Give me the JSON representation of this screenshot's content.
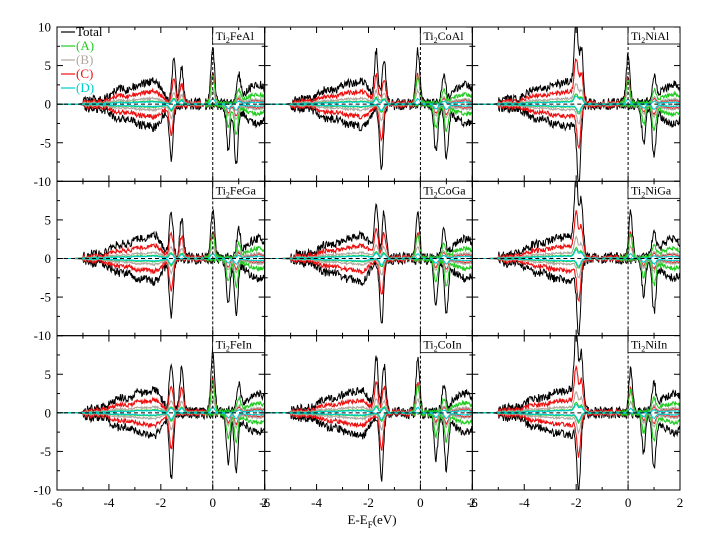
{
  "figure": {
    "xlabel": "E-E",
    "xlabel_sub": "F",
    "xlabel_unit": "(eV)",
    "legend": [
      {
        "label": "Total",
        "color": "#000000"
      },
      {
        "label": "(A)",
        "color": "#22cc22"
      },
      {
        "label": "(B)",
        "color": "#b0a8a0"
      },
      {
        "label": "(C)",
        "color": "#ee1111"
      },
      {
        "label": "(D)",
        "color": "#00cccc"
      }
    ],
    "x_ticks": [
      "-6",
      "-4",
      "-2",
      "0",
      "2"
    ],
    "x_tick_values": [
      -6,
      -4,
      -2,
      0,
      2
    ],
    "y_ticks": [
      "10",
      "5",
      "0",
      "-5",
      "-10"
    ],
    "y_tick_values": [
      10,
      5,
      0,
      -5,
      -10
    ]
  },
  "panels": [
    {
      "id": "Ti2FeAl",
      "base": "Ti",
      "sub": "2",
      "rest": "FeAl"
    },
    {
      "id": "Ti2CoAl",
      "base": "Ti",
      "sub": "2",
      "rest": "CoAl"
    },
    {
      "id": "Ti2NiAl",
      "base": "Ti",
      "sub": "2",
      "rest": "NiAl"
    },
    {
      "id": "Ti2FeGa",
      "base": "Ti",
      "sub": "2",
      "rest": "FeGa"
    },
    {
      "id": "Ti2CoGa",
      "base": "Ti",
      "sub": "2",
      "rest": "CoGa"
    },
    {
      "id": "Ti2NiGa",
      "base": "Ti",
      "sub": "2",
      "rest": "NiGa"
    },
    {
      "id": "Ti2FeIn",
      "base": "Ti",
      "sub": "2",
      "rest": "FeIn"
    },
    {
      "id": "Ti2CoIn",
      "base": "Ti",
      "sub": "2",
      "rest": "CoIn"
    },
    {
      "id": "Ti2NiIn",
      "base": "Ti",
      "sub": "2",
      "rest": "NiIn"
    }
  ],
  "chart_data": {
    "type": "line",
    "layout": "3x3 grid of panels with shared axes",
    "x_range": [
      -6,
      2
    ],
    "y_range": [
      -10,
      10
    ],
    "fermi_line_x": 0,
    "series_names": [
      "Total",
      "(A)",
      "(B)",
      "(C)",
      "(D)"
    ],
    "note": "Spin-resolved density of states; positive y = spin up, negative y = spin down",
    "peaks": {
      "Ti2FeAl": {
        "up": [
          [
            -1.5,
            6.2
          ],
          [
            -1.2,
            5.0
          ],
          [
            0,
            7.8
          ],
          [
            1.0,
            3.5
          ]
        ],
        "down": [
          [
            -1.6,
            -7.5
          ],
          [
            0.6,
            -6.5
          ],
          [
            0.9,
            -8.2
          ]
        ]
      },
      "Ti2CoAl": {
        "up": [
          [
            -1.7,
            7.0
          ],
          [
            -1.4,
            6.0
          ],
          [
            -0.1,
            7.5
          ],
          [
            0.9,
            3.5
          ]
        ],
        "down": [
          [
            -1.5,
            -9.0
          ],
          [
            0.6,
            -6.8
          ],
          [
            1.0,
            -7.0
          ]
        ]
      },
      "Ti2NiAl": {
        "up": [
          [
            -2.0,
            9.5
          ],
          [
            -1.8,
            7.0
          ],
          [
            0.0,
            6.8
          ],
          [
            1.0,
            3.5
          ]
        ],
        "down": [
          [
            -1.9,
            -9.8
          ],
          [
            0.6,
            -5.5
          ],
          [
            1.0,
            -7.0
          ]
        ]
      },
      "Ti2FeGa": {
        "up": [
          [
            -1.6,
            6.5
          ],
          [
            -1.2,
            5.5
          ],
          [
            0,
            7.0
          ],
          [
            1.0,
            3.5
          ]
        ],
        "down": [
          [
            -1.6,
            -7.8
          ],
          [
            0.6,
            -6.5
          ],
          [
            0.9,
            -7.6
          ]
        ]
      },
      "Ti2CoGa": {
        "up": [
          [
            -1.7,
            7.5
          ],
          [
            -1.4,
            6.5
          ],
          [
            -0.1,
            7.0
          ],
          [
            0.9,
            3.5
          ]
        ],
        "down": [
          [
            -1.5,
            -9.5
          ],
          [
            0.6,
            -6.5
          ],
          [
            1.0,
            -7.0
          ]
        ]
      },
      "Ti2NiGa": {
        "up": [
          [
            -2.0,
            9.8
          ],
          [
            -1.8,
            7.5
          ],
          [
            0.1,
            6.5
          ],
          [
            1.0,
            3.5
          ]
        ],
        "down": [
          [
            -1.9,
            -9.5
          ],
          [
            0.6,
            -5.0
          ],
          [
            1.0,
            -7.0
          ]
        ]
      },
      "Ti2FeIn": {
        "up": [
          [
            -1.6,
            7.0
          ],
          [
            -1.2,
            6.0
          ],
          [
            0,
            8.8
          ],
          [
            1.0,
            3.5
          ]
        ],
        "down": [
          [
            -1.6,
            -9.0
          ],
          [
            0.6,
            -7.0
          ],
          [
            0.9,
            -8.0
          ]
        ]
      },
      "Ti2CoIn": {
        "up": [
          [
            -1.7,
            7.5
          ],
          [
            -1.4,
            6.5
          ],
          [
            -0.1,
            7.5
          ],
          [
            0.9,
            3.5
          ]
        ],
        "down": [
          [
            -1.5,
            -9.5
          ],
          [
            0.6,
            -6.5
          ],
          [
            1.0,
            -7.5
          ]
        ]
      },
      "Ti2NiIn": {
        "up": [
          [
            -2.0,
            9.8
          ],
          [
            -1.8,
            7.5
          ],
          [
            0.1,
            6.0
          ],
          [
            1.0,
            3.5
          ]
        ],
        "down": [
          [
            -1.9,
            -9.8
          ],
          [
            0.6,
            -5.5
          ],
          [
            1.0,
            -7.5
          ]
        ]
      }
    }
  }
}
